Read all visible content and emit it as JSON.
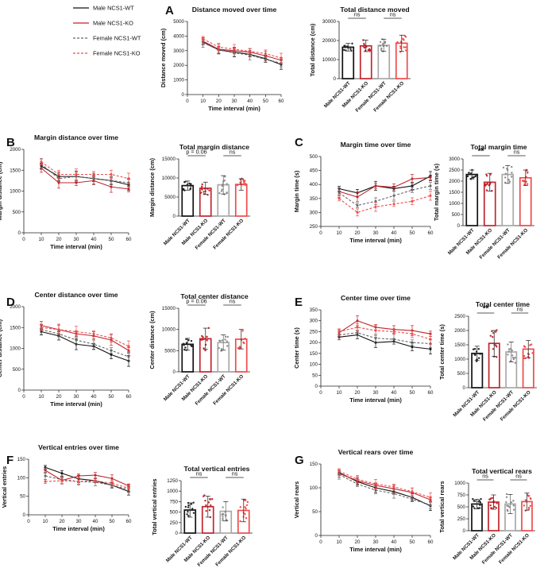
{
  "legend": {
    "entries": [
      {
        "label": "Male NCS1-WT",
        "color": "#111111",
        "dash": "solid"
      },
      {
        "label": "Male NCS1-KO",
        "color": "#c0262d",
        "dash": "solid"
      },
      {
        "label": "Female NCS1-WT",
        "color": "#7f7f7f",
        "dash": "dashed"
      },
      {
        "label": "Female NCS1-KO",
        "color": "#ef4b4b",
        "dash": "dashed"
      }
    ]
  },
  "colors": {
    "male_wt": "#111111",
    "male_ko": "#c0262d",
    "female_wt": "#a9a9a9",
    "female_ko": "#ef4b4b"
  },
  "chart_data": [
    {
      "panel": "A",
      "type": "line",
      "title": "Distance moved over time",
      "xlabel": "Time interval (min)",
      "ylabel": "Distance moved (cm)",
      "x": [
        10,
        20,
        30,
        40,
        50,
        60
      ],
      "xlim": [
        0,
        60
      ],
      "ylim": [
        0,
        5000
      ],
      "xticks": [
        0,
        10,
        20,
        30,
        40,
        50,
        60
      ],
      "yticks": [
        0,
        1000,
        2000,
        3000,
        4000,
        5000
      ],
      "series": [
        {
          "name": "Male NCS1-WT",
          "values": [
            3600,
            3050,
            2900,
            2750,
            2450,
            2050
          ]
        },
        {
          "name": "Male NCS1-KO",
          "values": [
            3650,
            3100,
            3000,
            2900,
            2650,
            2350
          ]
        },
        {
          "name": "Female NCS1-WT",
          "values": [
            3550,
            3050,
            2850,
            2700,
            2400,
            2150
          ]
        },
        {
          "name": "Female NCS1-KO",
          "values": [
            3800,
            3250,
            3100,
            2950,
            2800,
            2500
          ]
        }
      ]
    },
    {
      "panel": "A",
      "type": "bar",
      "title": "Total distance moved",
      "ylabel": "Total distance (cm)",
      "categories": [
        "Male NCS1-WT",
        "Male NCS1-KO",
        "Female NCS1-WT",
        "Female NCS1-KO"
      ],
      "values": [
        16500,
        17200,
        17500,
        18600
      ],
      "errors": [
        2000,
        3000,
        3200,
        4200
      ],
      "ylim": [
        0,
        30000
      ],
      "yticks": [
        0,
        10000,
        20000,
        30000
      ],
      "annotations": [
        {
          "groups": [
            1,
            2
          ],
          "text": "ns"
        },
        {
          "groups": [
            3,
            4
          ],
          "text": "ns"
        }
      ]
    },
    {
      "panel": "B",
      "type": "line",
      "title": "Margin distance over time",
      "xlabel": "Time interval (min)",
      "ylabel": "Margin distance (cm)",
      "x": [
        10,
        20,
        30,
        40,
        50,
        60
      ],
      "xlim": [
        0,
        60
      ],
      "ylim": [
        0,
        2000
      ],
      "xticks": [
        0,
        10,
        20,
        30,
        40,
        50,
        60
      ],
      "yticks": [
        0,
        500,
        1000,
        1500,
        2000
      ],
      "series": [
        {
          "name": "Male NCS1-WT",
          "values": [
            1600,
            1350,
            1350,
            1300,
            1250,
            1150
          ]
        },
        {
          "name": "Male NCS1-KO",
          "values": [
            1550,
            1200,
            1200,
            1250,
            1100,
            1050
          ]
        },
        {
          "name": "Female NCS1-WT",
          "values": [
            1650,
            1300,
            1350,
            1300,
            1250,
            1200
          ]
        },
        {
          "name": "Female NCS1-KO",
          "values": [
            1700,
            1400,
            1400,
            1400,
            1400,
            1300
          ]
        }
      ]
    },
    {
      "panel": "B",
      "type": "bar",
      "title": "Total margin distance",
      "ylabel": "Margin distance (cm)",
      "categories": [
        "Male NCS1-WT",
        "Male NCS1-KO",
        "Female NCS1-WT",
        "Female NCS1-KO"
      ],
      "values": [
        8000,
        7300,
        8200,
        8300
      ],
      "errors": [
        1200,
        1600,
        2400,
        1500
      ],
      "ylim": [
        0,
        15000
      ],
      "yticks": [
        0,
        5000,
        10000,
        15000
      ],
      "annotations": [
        {
          "groups": [
            1,
            2
          ],
          "text": "p = 0.06"
        },
        {
          "groups": [
            3,
            4
          ],
          "text": "ns"
        }
      ]
    },
    {
      "panel": "C",
      "type": "line",
      "title": "Margin time over time",
      "xlabel": "Time interval (min)",
      "ylabel": "Margin time (s)",
      "x": [
        10,
        20,
        30,
        40,
        50,
        60
      ],
      "xlim": [
        0,
        60
      ],
      "ylim": [
        250,
        500
      ],
      "xticks": [
        0,
        10,
        20,
        30,
        40,
        50,
        60
      ],
      "yticks": [
        250,
        300,
        350,
        400,
        450,
        500
      ],
      "series": [
        {
          "name": "Male NCS1-WT",
          "values": [
            385,
            370,
            395,
            385,
            395,
            430
          ]
        },
        {
          "name": "Male NCS1-KO",
          "values": [
            375,
            355,
            395,
            390,
            420,
            425
          ]
        },
        {
          "name": "Female NCS1-WT",
          "values": [
            370,
            325,
            340,
            360,
            380,
            395
          ]
        },
        {
          "name": "Female NCS1-KO",
          "values": [
            350,
            300,
            320,
            330,
            340,
            360
          ]
        }
      ]
    },
    {
      "panel": "C",
      "type": "bar",
      "title": "Total margin time",
      "ylabel": "Total margin time (s)",
      "categories": [
        "Male NCS1-WT",
        "Male NCS1-KO",
        "Female NCS1-WT",
        "Female NCS1-KO"
      ],
      "values": [
        2300,
        1950,
        2300,
        2150
      ],
      "errors": [
        200,
        400,
        400,
        350
      ],
      "ylim": [
        0,
        3000
      ],
      "yticks": [
        0,
        500,
        1000,
        1500,
        2000,
        2500,
        3000
      ],
      "annotations": [
        {
          "groups": [
            1,
            2
          ],
          "text": "**"
        },
        {
          "groups": [
            3,
            4
          ],
          "text": "ns"
        }
      ]
    },
    {
      "panel": "D",
      "type": "line",
      "title": "Center distance over time",
      "xlabel": "Time interval (min)",
      "ylabel": "Center distance (cm)",
      "x": [
        10,
        20,
        30,
        40,
        50,
        60
      ],
      "xlim": [
        0,
        60
      ],
      "ylim": [
        0,
        2000
      ],
      "xticks": [
        0,
        10,
        20,
        30,
        40,
        50,
        60
      ],
      "yticks": [
        0,
        500,
        1000,
        1500,
        2000
      ],
      "series": [
        {
          "name": "Male NCS1-WT",
          "values": [
            1400,
            1300,
            1100,
            1050,
            850,
            700
          ]
        },
        {
          "name": "Male NCS1-KO",
          "values": [
            1550,
            1450,
            1350,
            1300,
            1200,
            950
          ]
        },
        {
          "name": "Female NCS1-WT",
          "values": [
            1450,
            1350,
            1200,
            1100,
            950,
            800
          ]
        },
        {
          "name": "Female NCS1-KO",
          "values": [
            1500,
            1450,
            1400,
            1350,
            1250,
            1050
          ]
        }
      ]
    },
    {
      "panel": "D",
      "type": "bar",
      "title": "Total center distance",
      "ylabel": "Center distance (cm)",
      "categories": [
        "Male NCS1-WT",
        "Male NCS1-KO",
        "Female NCS1-WT",
        "Female NCS1-KO"
      ],
      "values": [
        6500,
        7800,
        6900,
        7700
      ],
      "errors": [
        1400,
        2500,
        1800,
        2300
      ],
      "ylim": [
        0,
        15000
      ],
      "yticks": [
        0,
        5000,
        10000,
        15000
      ],
      "annotations": [
        {
          "groups": [
            1,
            2
          ],
          "text": "p = 0.06"
        },
        {
          "groups": [
            3,
            4
          ],
          "text": "ns"
        }
      ]
    },
    {
      "panel": "E",
      "type": "line",
      "title": "Center time over time",
      "xlabel": "Time interval (min)",
      "ylabel": "Center time (s)",
      "x": [
        10,
        20,
        30,
        40,
        50,
        60
      ],
      "xlim": [
        0,
        60
      ],
      "ylim": [
        0,
        350
      ],
      "xticks": [
        0,
        10,
        20,
        30,
        40,
        50,
        60
      ],
      "yticks": [
        0,
        50,
        100,
        150,
        200,
        250,
        300,
        350
      ],
      "series": [
        {
          "name": "Male NCS1-WT",
          "values": [
            225,
            235,
            200,
            205,
            180,
            170
          ]
        },
        {
          "name": "Male NCS1-KO",
          "values": [
            245,
            300,
            270,
            260,
            255,
            240
          ]
        },
        {
          "name": "Female NCS1-WT",
          "values": [
            235,
            245,
            220,
            215,
            200,
            195
          ]
        },
        {
          "name": "Female NCS1-KO",
          "values": [
            250,
            270,
            255,
            250,
            240,
            215
          ]
        }
      ]
    },
    {
      "panel": "E",
      "type": "bar",
      "title": "Total center time",
      "ylabel": "Total center time (s)",
      "categories": [
        "Male NCS1-WT",
        "Male NCS1-KO",
        "Female NCS1-WT",
        "Female NCS1-KO"
      ],
      "values": [
        1200,
        1550,
        1250,
        1350
      ],
      "errors": [
        250,
        450,
        350,
        300
      ],
      "ylim": [
        0,
        2500
      ],
      "yticks": [
        0,
        500,
        1000,
        1500,
        2000,
        2500
      ],
      "annotations": [
        {
          "groups": [
            1,
            2
          ],
          "text": "**"
        },
        {
          "groups": [
            3,
            4
          ],
          "text": "ns"
        }
      ]
    },
    {
      "panel": "F",
      "type": "line",
      "title": "Vertical entries over time",
      "xlabel": "Time interval (min)",
      "ylabel": "Vertical entries",
      "x": [
        10,
        20,
        30,
        40,
        50,
        60
      ],
      "xlim": [
        0,
        60
      ],
      "ylim": [
        0,
        150
      ],
      "xticks": [
        0,
        10,
        20,
        30,
        40,
        50,
        60
      ],
      "yticks": [
        0,
        50,
        100,
        150
      ],
      "series": [
        {
          "name": "Male NCS1-WT",
          "values": [
            128,
            112,
            97,
            92,
            80,
            63
          ]
        },
        {
          "name": "Male NCS1-KO",
          "values": [
            120,
            93,
            105,
            107,
            98,
            78
          ]
        },
        {
          "name": "Female NCS1-WT",
          "values": [
            105,
            95,
            90,
            88,
            80,
            68
          ]
        },
        {
          "name": "Female NCS1-KO",
          "values": [
            90,
            92,
            90,
            92,
            85,
            72
          ]
        }
      ]
    },
    {
      "panel": "F",
      "type": "bar",
      "title": "Total vertical entries",
      "ylabel": "Total vertical entries",
      "categories": [
        "Male NCS1-WT",
        "Male NCS1-KO",
        "Female NCS1-WT",
        "Female NCS1-KO"
      ],
      "values": [
        550,
        630,
        520,
        540
      ],
      "errors": [
        170,
        250,
        230,
        270
      ],
      "ylim": [
        0,
        1250
      ],
      "yticks": [
        0,
        250,
        500,
        750,
        1000,
        1250
      ],
      "annotations": [
        {
          "groups": [
            1,
            2
          ],
          "text": "ns"
        },
        {
          "groups": [
            3,
            4
          ],
          "text": "ns"
        }
      ]
    },
    {
      "panel": "G",
      "type": "line",
      "title": "Vertical rears over time",
      "xlabel": "Time interval (min)",
      "ylabel": "Vertical rears",
      "x": [
        10,
        20,
        30,
        40,
        50,
        60
      ],
      "xlim": [
        0,
        60
      ],
      "ylim": [
        0,
        150
      ],
      "xticks": [
        0,
        10,
        20,
        30,
        40,
        50,
        60
      ],
      "yticks": [
        0,
        50,
        100,
        150
      ],
      "series": [
        {
          "name": "Male NCS1-WT",
          "values": [
            132,
            113,
            100,
            92,
            80,
            62
          ]
        },
        {
          "name": "Male NCS1-KO",
          "values": [
            130,
            115,
            105,
            98,
            90,
            75
          ]
        },
        {
          "name": "Female NCS1-WT",
          "values": [
            128,
            108,
            95,
            88,
            76,
            64
          ]
        },
        {
          "name": "Female NCS1-KO",
          "values": [
            135,
            118,
            108,
            102,
            92,
            80
          ]
        }
      ]
    },
    {
      "panel": "G",
      "type": "bar",
      "title": "Total vertical rears",
      "ylabel": "Total vertical rears",
      "categories": [
        "Male NCS1-WT",
        "Male NCS1-KO",
        "Female NCS1-WT",
        "Female NCS1-KO"
      ],
      "values": [
        560,
        600,
        560,
        610
      ],
      "errors": [
        100,
        150,
        200,
        180
      ],
      "ylim": [
        0,
        1000
      ],
      "yticks": [
        0,
        250,
        500,
        750,
        1000
      ],
      "annotations": [
        {
          "groups": [
            1,
            2
          ],
          "text": "ns"
        },
        {
          "groups": [
            3,
            4
          ],
          "text": "ns"
        }
      ]
    }
  ]
}
